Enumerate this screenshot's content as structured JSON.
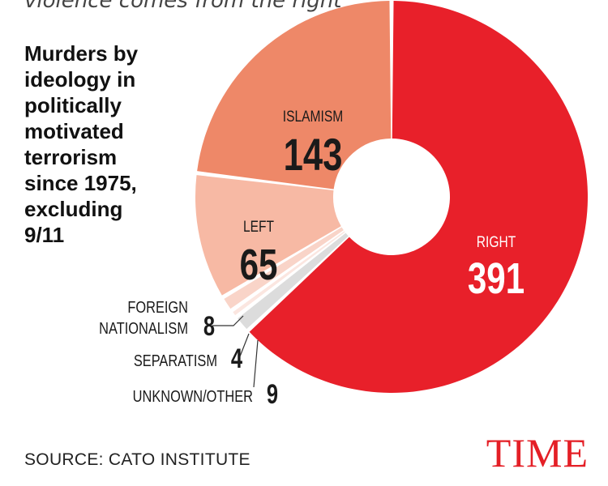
{
  "header": {
    "cut_text": "violence comes from the right"
  },
  "subtitle_lines": [
    "Murders by",
    "ideology in",
    "politically",
    "motivated",
    "terrorism",
    "since 1975,",
    "excluding",
    "9/11"
  ],
  "source": "SOURCE: CATO INSTITUTE",
  "brand": {
    "logo_text": "TIME",
    "color": "#e41f26"
  },
  "chart_data": {
    "type": "pie",
    "style": "donut",
    "title": "Murders by ideology in politically motivated terrorism since 1975, excluding 9/11",
    "slices": [
      {
        "label": "RIGHT",
        "value": 391,
        "color": "#e8202a"
      },
      {
        "label": "UNKNOWN/OTHER",
        "value": 9,
        "color": "#dcdcdc"
      },
      {
        "label": "SEPARATISM",
        "value": 4,
        "color": "#fbe6e0"
      },
      {
        "label": "FOREIGN NATIONALISM",
        "value": 8,
        "color": "#f9d4c8"
      },
      {
        "label": "LEFT",
        "value": 65,
        "color": "#f7b9a4"
      },
      {
        "label": "ISLAMISM",
        "value": 143,
        "color": "#ee8868"
      }
    ],
    "external_label_lines": {
      "FOREIGN NATIONALISM": [
        "FOREIGN",
        "NATIONALISM"
      ]
    },
    "legend": "none"
  }
}
